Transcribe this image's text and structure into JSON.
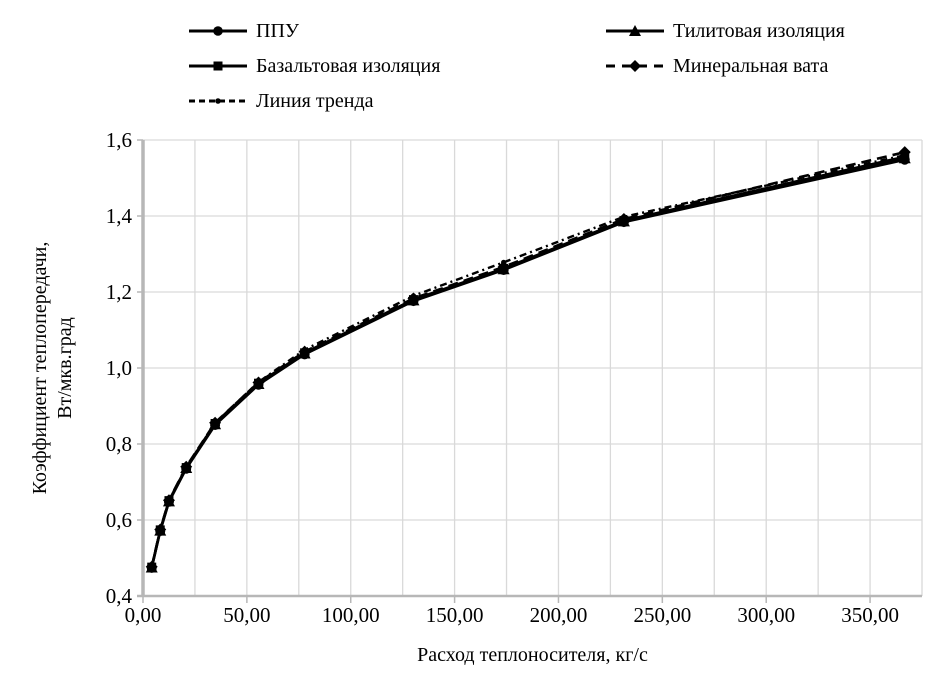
{
  "chart_data": {
    "type": "line",
    "title": "",
    "xlabel": "Расход теплоносителя, кг/с",
    "ylabel": "Коэффициент теплопередачи, Вт/мкв.град",
    "ylabel_line1": "Коэффициент теплопередачи,",
    "ylabel_line2": "Вт/мкв.град",
    "xlim": [
      0,
      375
    ],
    "ylim": [
      0.4,
      1.6
    ],
    "x_minor_grid_step": 25,
    "grid": {
      "vertical_minor": true,
      "horizontal_major": true
    },
    "legend_position": "top",
    "x_ticks": {
      "values": [
        0,
        50,
        100,
        150,
        200,
        250,
        300,
        350
      ],
      "labels": [
        "0,00",
        "50,00",
        "100,00",
        "150,00",
        "200,00",
        "250,00",
        "300,00",
        "350,00"
      ]
    },
    "y_ticks": {
      "values": [
        0.4,
        0.6,
        0.8,
        1.0,
        1.2,
        1.4,
        1.6
      ],
      "labels": [
        "0,4",
        "0,6",
        "0,8",
        "1,0",
        "1,2",
        "1,4",
        "1,6"
      ]
    },
    "colors": {
      "series": "#000000",
      "gridline": "#d9d9d9",
      "axis": "#b7b7b7",
      "background": "#ffffff",
      "text": "#000000"
    },
    "x": [
      4.2,
      8.3,
      12.5,
      20.8,
      34.7,
      55.6,
      77.8,
      130.2,
      173.6,
      231.5,
      366.7
    ],
    "series": [
      {
        "name": "ППУ",
        "marker": "circle",
        "line": "solid",
        "values": [
          0.474,
          0.571,
          0.648,
          0.735,
          0.85,
          0.956,
          1.036,
          1.176,
          1.258,
          1.384,
          1.548
        ]
      },
      {
        "name": "Тилитовая изоляция",
        "marker": "triangle",
        "line": "solid",
        "values": [
          0.475,
          0.572,
          0.649,
          0.737,
          0.852,
          0.958,
          1.038,
          1.178,
          1.26,
          1.386,
          1.552
        ]
      },
      {
        "name": "Базальтовая изоляция",
        "marker": "square",
        "line": "solid",
        "values": [
          0.476,
          0.574,
          0.651,
          0.738,
          0.854,
          0.96,
          1.04,
          1.18,
          1.262,
          1.388,
          1.556
        ]
      },
      {
        "name": "Минеральная вата",
        "marker": "diamond",
        "line": "dashed",
        "values": [
          0.477,
          0.575,
          0.652,
          0.74,
          0.856,
          0.962,
          1.043,
          1.183,
          1.266,
          1.392,
          1.568
        ]
      },
      {
        "name": "Линия тренда",
        "marker": "dot",
        "line": "dash-dot",
        "values": [
          0.476,
          0.574,
          0.651,
          0.739,
          0.855,
          0.963,
          1.048,
          1.19,
          1.278,
          1.398,
          1.56
        ]
      }
    ]
  }
}
